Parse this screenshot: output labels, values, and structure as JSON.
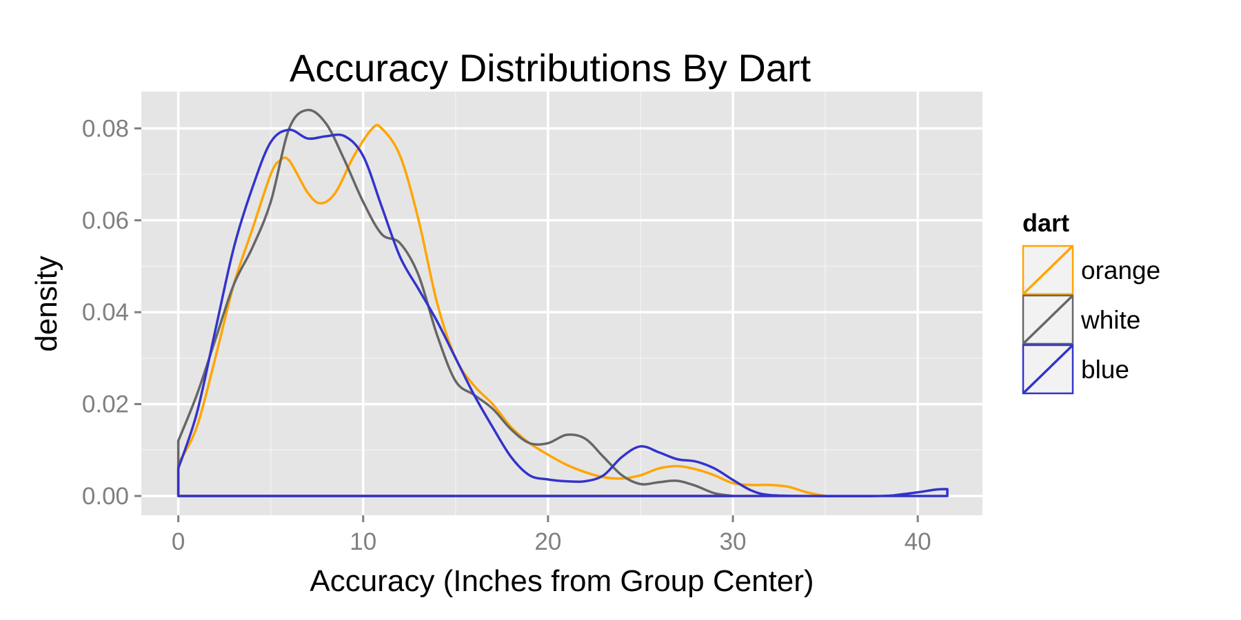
{
  "chart_data": {
    "type": "line",
    "title": "Accuracy Distributions By Dart",
    "xlabel": "Accuracy (Inches from Group Center)",
    "ylabel": "density",
    "xlim": [
      -2,
      43.5
    ],
    "ylim": [
      -0.0042,
      0.088
    ],
    "xticks": [
      0,
      10,
      20,
      30,
      40
    ],
    "xtick_labels": [
      "0",
      "10",
      "20",
      "30",
      "40"
    ],
    "yticks": [
      0.0,
      0.02,
      0.04,
      0.06,
      0.08
    ],
    "ytick_labels": [
      "0.00",
      "0.02",
      "0.04",
      "0.06",
      "0.08"
    ],
    "grid": true,
    "panel_background": "#e5e5e5",
    "legend": {
      "title": "dart",
      "position": "right"
    },
    "series": [
      {
        "name": "orange",
        "color": "#ffa500",
        "x_range": [
          0,
          35
        ],
        "points": [
          [
            0,
            0.007
          ],
          [
            1,
            0.015
          ],
          [
            2,
            0.03
          ],
          [
            3,
            0.046
          ],
          [
            4,
            0.058
          ],
          [
            5,
            0.07
          ],
          [
            5.5,
            0.073
          ],
          [
            6,
            0.073
          ],
          [
            7,
            0.066
          ],
          [
            7.7,
            0.0637
          ],
          [
            8.5,
            0.066
          ],
          [
            9.5,
            0.074
          ],
          [
            10.5,
            0.08
          ],
          [
            11,
            0.08
          ],
          [
            12,
            0.074
          ],
          [
            13,
            0.06
          ],
          [
            14,
            0.042
          ],
          [
            15,
            0.03
          ],
          [
            16,
            0.024
          ],
          [
            17,
            0.02
          ],
          [
            18,
            0.015
          ],
          [
            19,
            0.0115
          ],
          [
            20,
            0.009
          ],
          [
            21,
            0.0068
          ],
          [
            22,
            0.0052
          ],
          [
            23,
            0.0041
          ],
          [
            24,
            0.0038
          ],
          [
            25,
            0.0045
          ],
          [
            26,
            0.006
          ],
          [
            27,
            0.0065
          ],
          [
            28,
            0.0058
          ],
          [
            29,
            0.0045
          ],
          [
            30,
            0.0028
          ],
          [
            31,
            0.0024
          ],
          [
            32,
            0.0024
          ],
          [
            33,
            0.002
          ],
          [
            34,
            0.0008
          ],
          [
            35,
            0.0
          ]
        ]
      },
      {
        "name": "white",
        "color": "#666666",
        "x_range": [
          0,
          30
        ],
        "points": [
          [
            0,
            0.012
          ],
          [
            1,
            0.022
          ],
          [
            2,
            0.034
          ],
          [
            3,
            0.046
          ],
          [
            4,
            0.054
          ],
          [
            5,
            0.064
          ],
          [
            6,
            0.08
          ],
          [
            7,
            0.084
          ],
          [
            8,
            0.081
          ],
          [
            9,
            0.073
          ],
          [
            10,
            0.064
          ],
          [
            11,
            0.057
          ],
          [
            12,
            0.055
          ],
          [
            13,
            0.048
          ],
          [
            14,
            0.035
          ],
          [
            15,
            0.025
          ],
          [
            16,
            0.022
          ],
          [
            17,
            0.019
          ],
          [
            18,
            0.0145
          ],
          [
            19,
            0.0115
          ],
          [
            20,
            0.0115
          ],
          [
            21,
            0.0133
          ],
          [
            22,
            0.0125
          ],
          [
            23,
            0.0085
          ],
          [
            24,
            0.0045
          ],
          [
            25,
            0.0026
          ],
          [
            26,
            0.003
          ],
          [
            27,
            0.0033
          ],
          [
            28,
            0.0022
          ],
          [
            29,
            0.0006
          ],
          [
            30,
            0.0
          ]
        ]
      },
      {
        "name": "blue",
        "color": "#3333cc",
        "x_range": [
          0,
          41.6
        ],
        "points": [
          [
            0,
            0.006
          ],
          [
            1,
            0.018
          ],
          [
            2,
            0.036
          ],
          [
            3,
            0.054
          ],
          [
            4,
            0.067
          ],
          [
            5,
            0.077
          ],
          [
            6,
            0.0797
          ],
          [
            7,
            0.0778
          ],
          [
            8,
            0.0783
          ],
          [
            9,
            0.0783
          ],
          [
            10,
            0.074
          ],
          [
            11,
            0.063
          ],
          [
            12,
            0.052
          ],
          [
            13,
            0.045
          ],
          [
            14,
            0.038
          ],
          [
            15,
            0.03
          ],
          [
            16,
            0.022
          ],
          [
            17,
            0.015
          ],
          [
            18,
            0.0085
          ],
          [
            19,
            0.0045
          ],
          [
            20,
            0.0036
          ],
          [
            21,
            0.0032
          ],
          [
            22,
            0.0032
          ],
          [
            23,
            0.0045
          ],
          [
            24,
            0.0085
          ],
          [
            25,
            0.0108
          ],
          [
            26,
            0.0095
          ],
          [
            27,
            0.008
          ],
          [
            28,
            0.0075
          ],
          [
            29,
            0.006
          ],
          [
            30,
            0.0035
          ],
          [
            31,
            0.0012
          ],
          [
            32,
            0.0002
          ],
          [
            34,
            0.0
          ],
          [
            38,
            0.0
          ],
          [
            39,
            0.0003
          ],
          [
            40,
            0.0008
          ],
          [
            41,
            0.0014
          ],
          [
            41.6,
            0.0015
          ]
        ]
      }
    ]
  }
}
